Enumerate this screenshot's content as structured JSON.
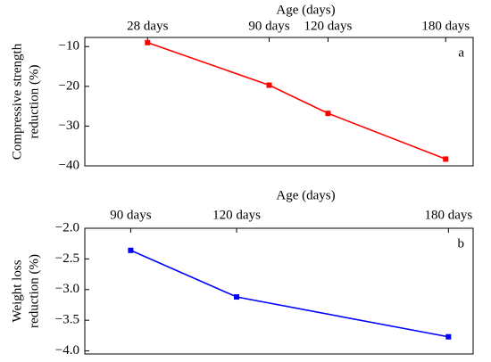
{
  "chart_data": [
    {
      "type": "line",
      "xlabel": "Age (days)",
      "ylabel": [
        "Compressive strength",
        "reduction (%)"
      ],
      "annotation": "a",
      "x": [
        28,
        90,
        120,
        180
      ],
      "series": [
        {
          "color": "#ff0000",
          "values": [
            -9.0,
            -19.7,
            -26.8,
            -38.3
          ]
        }
      ],
      "xlim": [
        -4,
        194
      ],
      "ylim": [
        -40,
        -7.7
      ],
      "xticks": [
        {
          "value": 28,
          "label": "28 days"
        },
        {
          "value": 90,
          "label": "90 days"
        },
        {
          "value": 120,
          "label": "120 days"
        },
        {
          "value": 180,
          "label": "180 days"
        }
      ],
      "yticks": [
        {
          "value": -10,
          "label": "−10"
        },
        {
          "value": -20,
          "label": "−20"
        },
        {
          "value": -30,
          "label": "−30"
        },
        {
          "value": -40,
          "label": "−40"
        }
      ]
    },
    {
      "type": "line",
      "xlabel": "Age (days)",
      "ylabel": [
        "Weight loss",
        "reduction (%)"
      ],
      "annotation": "b",
      "x": [
        90,
        120,
        180
      ],
      "series": [
        {
          "color": "#0000ff",
          "values": [
            -2.36,
            -3.12,
            -3.77
          ]
        }
      ],
      "xlim": [
        77,
        187
      ],
      "ylim": [
        -4.05,
        -2.0
      ],
      "xticks": [
        {
          "value": 90,
          "label": "90 days"
        },
        {
          "value": 120,
          "label": "120 days"
        },
        {
          "value": 180,
          "label": "180 days"
        }
      ],
      "yticks": [
        {
          "value": -2.0,
          "label": "−2.0"
        },
        {
          "value": -2.5,
          "label": "−2.5"
        },
        {
          "value": -3.0,
          "label": "−3.0"
        },
        {
          "value": -3.5,
          "label": "−3.5"
        },
        {
          "value": -4.0,
          "label": "−4.0"
        }
      ]
    }
  ]
}
